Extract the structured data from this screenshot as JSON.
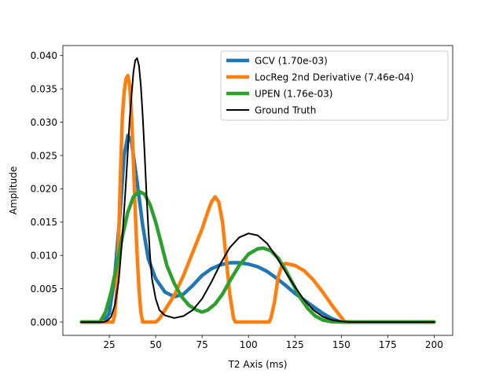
{
  "chart_data": {
    "type": "line",
    "title": "",
    "xlabel": "T2 Axis (ms)",
    "ylabel": "Amplitude",
    "xlim": [
      0,
      210
    ],
    "ylim": [
      -0.002,
      0.0415
    ],
    "xticks": [
      25,
      50,
      75,
      100,
      125,
      150,
      175,
      200
    ],
    "xtick_labels": [
      "25",
      "50",
      "75",
      "100",
      "125",
      "150",
      "175",
      "200"
    ],
    "yticks": [
      0.0,
      0.005,
      0.01,
      0.015,
      0.02,
      0.025,
      0.03,
      0.035,
      0.04
    ],
    "ytick_labels": [
      "0.000",
      "0.005",
      "0.010",
      "0.015",
      "0.020",
      "0.025",
      "0.030",
      "0.035",
      "0.040"
    ],
    "grid": false,
    "legend_position": "top-right",
    "series": [
      {
        "name": "GCV  (1.70e-03)",
        "color": "#1f77b4",
        "points": [
          [
            10,
            0
          ],
          [
            22,
            0
          ],
          [
            25,
            0.0013
          ],
          [
            28,
            0.007
          ],
          [
            31,
            0.017
          ],
          [
            33,
            0.025
          ],
          [
            35,
            0.028
          ],
          [
            37,
            0.027
          ],
          [
            40,
            0.021
          ],
          [
            43,
            0.0145
          ],
          [
            46,
            0.0095
          ],
          [
            50,
            0.0065
          ],
          [
            55,
            0.0045
          ],
          [
            60,
            0.0038
          ],
          [
            65,
            0.0042
          ],
          [
            70,
            0.0055
          ],
          [
            75,
            0.007
          ],
          [
            80,
            0.008
          ],
          [
            85,
            0.0086
          ],
          [
            90,
            0.0089
          ],
          [
            95,
            0.0089
          ],
          [
            100,
            0.0087
          ],
          [
            105,
            0.0083
          ],
          [
            110,
            0.0076
          ],
          [
            115,
            0.0066
          ],
          [
            120,
            0.0055
          ],
          [
            125,
            0.0043
          ],
          [
            130,
            0.0033
          ],
          [
            135,
            0.0023
          ],
          [
            140,
            0.0013
          ],
          [
            145,
            0.0005
          ],
          [
            150,
            0
          ],
          [
            200,
            0
          ]
        ]
      },
      {
        "name": "LocReg  2nd Derivative (7.46e-04)",
        "color": "#ff7f0e",
        "points": [
          [
            10,
            0
          ],
          [
            27,
            0
          ],
          [
            28,
            0.0012
          ],
          [
            29,
            0.005
          ],
          [
            30,
            0.012
          ],
          [
            31,
            0.022
          ],
          [
            32,
            0.0305
          ],
          [
            33,
            0.0345
          ],
          [
            34,
            0.0365
          ],
          [
            35,
            0.037
          ],
          [
            36,
            0.0355
          ],
          [
            37,
            0.031
          ],
          [
            38,
            0.024
          ],
          [
            39,
            0.0165
          ],
          [
            40,
            0.01
          ],
          [
            41,
            0.005
          ],
          [
            42,
            0.0015
          ],
          [
            43,
            0
          ],
          [
            50,
            0
          ],
          [
            52,
            0.0005
          ],
          [
            55,
            0.0018
          ],
          [
            60,
            0.004
          ],
          [
            65,
            0.007
          ],
          [
            70,
            0.0105
          ],
          [
            75,
            0.014
          ],
          [
            78,
            0.0165
          ],
          [
            80,
            0.018
          ],
          [
            82,
            0.0188
          ],
          [
            84,
            0.018
          ],
          [
            86,
            0.015
          ],
          [
            88,
            0.0095
          ],
          [
            90,
            0.004
          ],
          [
            92,
            0.0005
          ],
          [
            93,
            0
          ],
          [
            111,
            0
          ],
          [
            112,
            0.0005
          ],
          [
            114,
            0.003
          ],
          [
            116,
            0.0068
          ],
          [
            118,
            0.0085
          ],
          [
            120,
            0.0088
          ],
          [
            125,
            0.0085
          ],
          [
            130,
            0.0077
          ],
          [
            135,
            0.0063
          ],
          [
            140,
            0.0045
          ],
          [
            145,
            0.0025
          ],
          [
            150,
            0.0007
          ],
          [
            152,
            0
          ],
          [
            200,
            0
          ]
        ]
      },
      {
        "name": "UPEN  (1.76e-03)",
        "color": "#2ca02c",
        "points": [
          [
            10,
            0
          ],
          [
            20,
            0
          ],
          [
            23,
            0.0015
          ],
          [
            26,
            0.0045
          ],
          [
            29,
            0.0085
          ],
          [
            32,
            0.0128
          ],
          [
            35,
            0.0165
          ],
          [
            38,
            0.0188
          ],
          [
            41,
            0.0196
          ],
          [
            44,
            0.0192
          ],
          [
            47,
            0.0176
          ],
          [
            50,
            0.015
          ],
          [
            53,
            0.0118
          ],
          [
            56,
            0.0085
          ],
          [
            60,
            0.0058
          ],
          [
            64,
            0.0038
          ],
          [
            68,
            0.0025
          ],
          [
            72,
            0.0018
          ],
          [
            75,
            0.0015
          ],
          [
            78,
            0.0018
          ],
          [
            82,
            0.0027
          ],
          [
            86,
            0.0042
          ],
          [
            90,
            0.0062
          ],
          [
            95,
            0.0085
          ],
          [
            100,
            0.0102
          ],
          [
            105,
            0.011
          ],
          [
            108,
            0.0111
          ],
          [
            112,
            0.0107
          ],
          [
            116,
            0.0096
          ],
          [
            120,
            0.0078
          ],
          [
            124,
            0.0057
          ],
          [
            128,
            0.0036
          ],
          [
            132,
            0.002
          ],
          [
            136,
            0.0009
          ],
          [
            140,
            0.0003
          ],
          [
            145,
            5e-05
          ],
          [
            150,
            0
          ],
          [
            200,
            0
          ]
        ]
      },
      {
        "name": "Ground Truth",
        "color": "#000000",
        "points": [
          [
            10,
            0
          ],
          [
            22,
            0
          ],
          [
            24,
            0.0002
          ],
          [
            26,
            0.0008
          ],
          [
            28,
            0.0025
          ],
          [
            30,
            0.006
          ],
          [
            32,
            0.0125
          ],
          [
            34,
            0.021
          ],
          [
            36,
            0.0305
          ],
          [
            38,
            0.0375
          ],
          [
            39,
            0.0393
          ],
          [
            40,
            0.0396
          ],
          [
            41,
            0.0385
          ],
          [
            42,
            0.0355
          ],
          [
            43,
            0.031
          ],
          [
            44,
            0.0255
          ],
          [
            45,
            0.0195
          ],
          [
            46,
            0.0142
          ],
          [
            47,
            0.0098
          ],
          [
            48,
            0.0065
          ],
          [
            50,
            0.0035
          ],
          [
            52,
            0.0018
          ],
          [
            55,
            0.001
          ],
          [
            60,
            0.0006
          ],
          [
            65,
            0.0009
          ],
          [
            70,
            0.0018
          ],
          [
            75,
            0.0035
          ],
          [
            80,
            0.006
          ],
          [
            85,
            0.0088
          ],
          [
            90,
            0.0112
          ],
          [
            95,
            0.0127
          ],
          [
            100,
            0.0133
          ],
          [
            105,
            0.013
          ],
          [
            110,
            0.0118
          ],
          [
            115,
            0.0098
          ],
          [
            120,
            0.0075
          ],
          [
            125,
            0.0053
          ],
          [
            130,
            0.0033
          ],
          [
            135,
            0.0018
          ],
          [
            140,
            0.0008
          ],
          [
            145,
            0.0003
          ],
          [
            150,
            0.0001
          ],
          [
            155,
            0
          ],
          [
            200,
            0
          ]
        ]
      }
    ]
  }
}
